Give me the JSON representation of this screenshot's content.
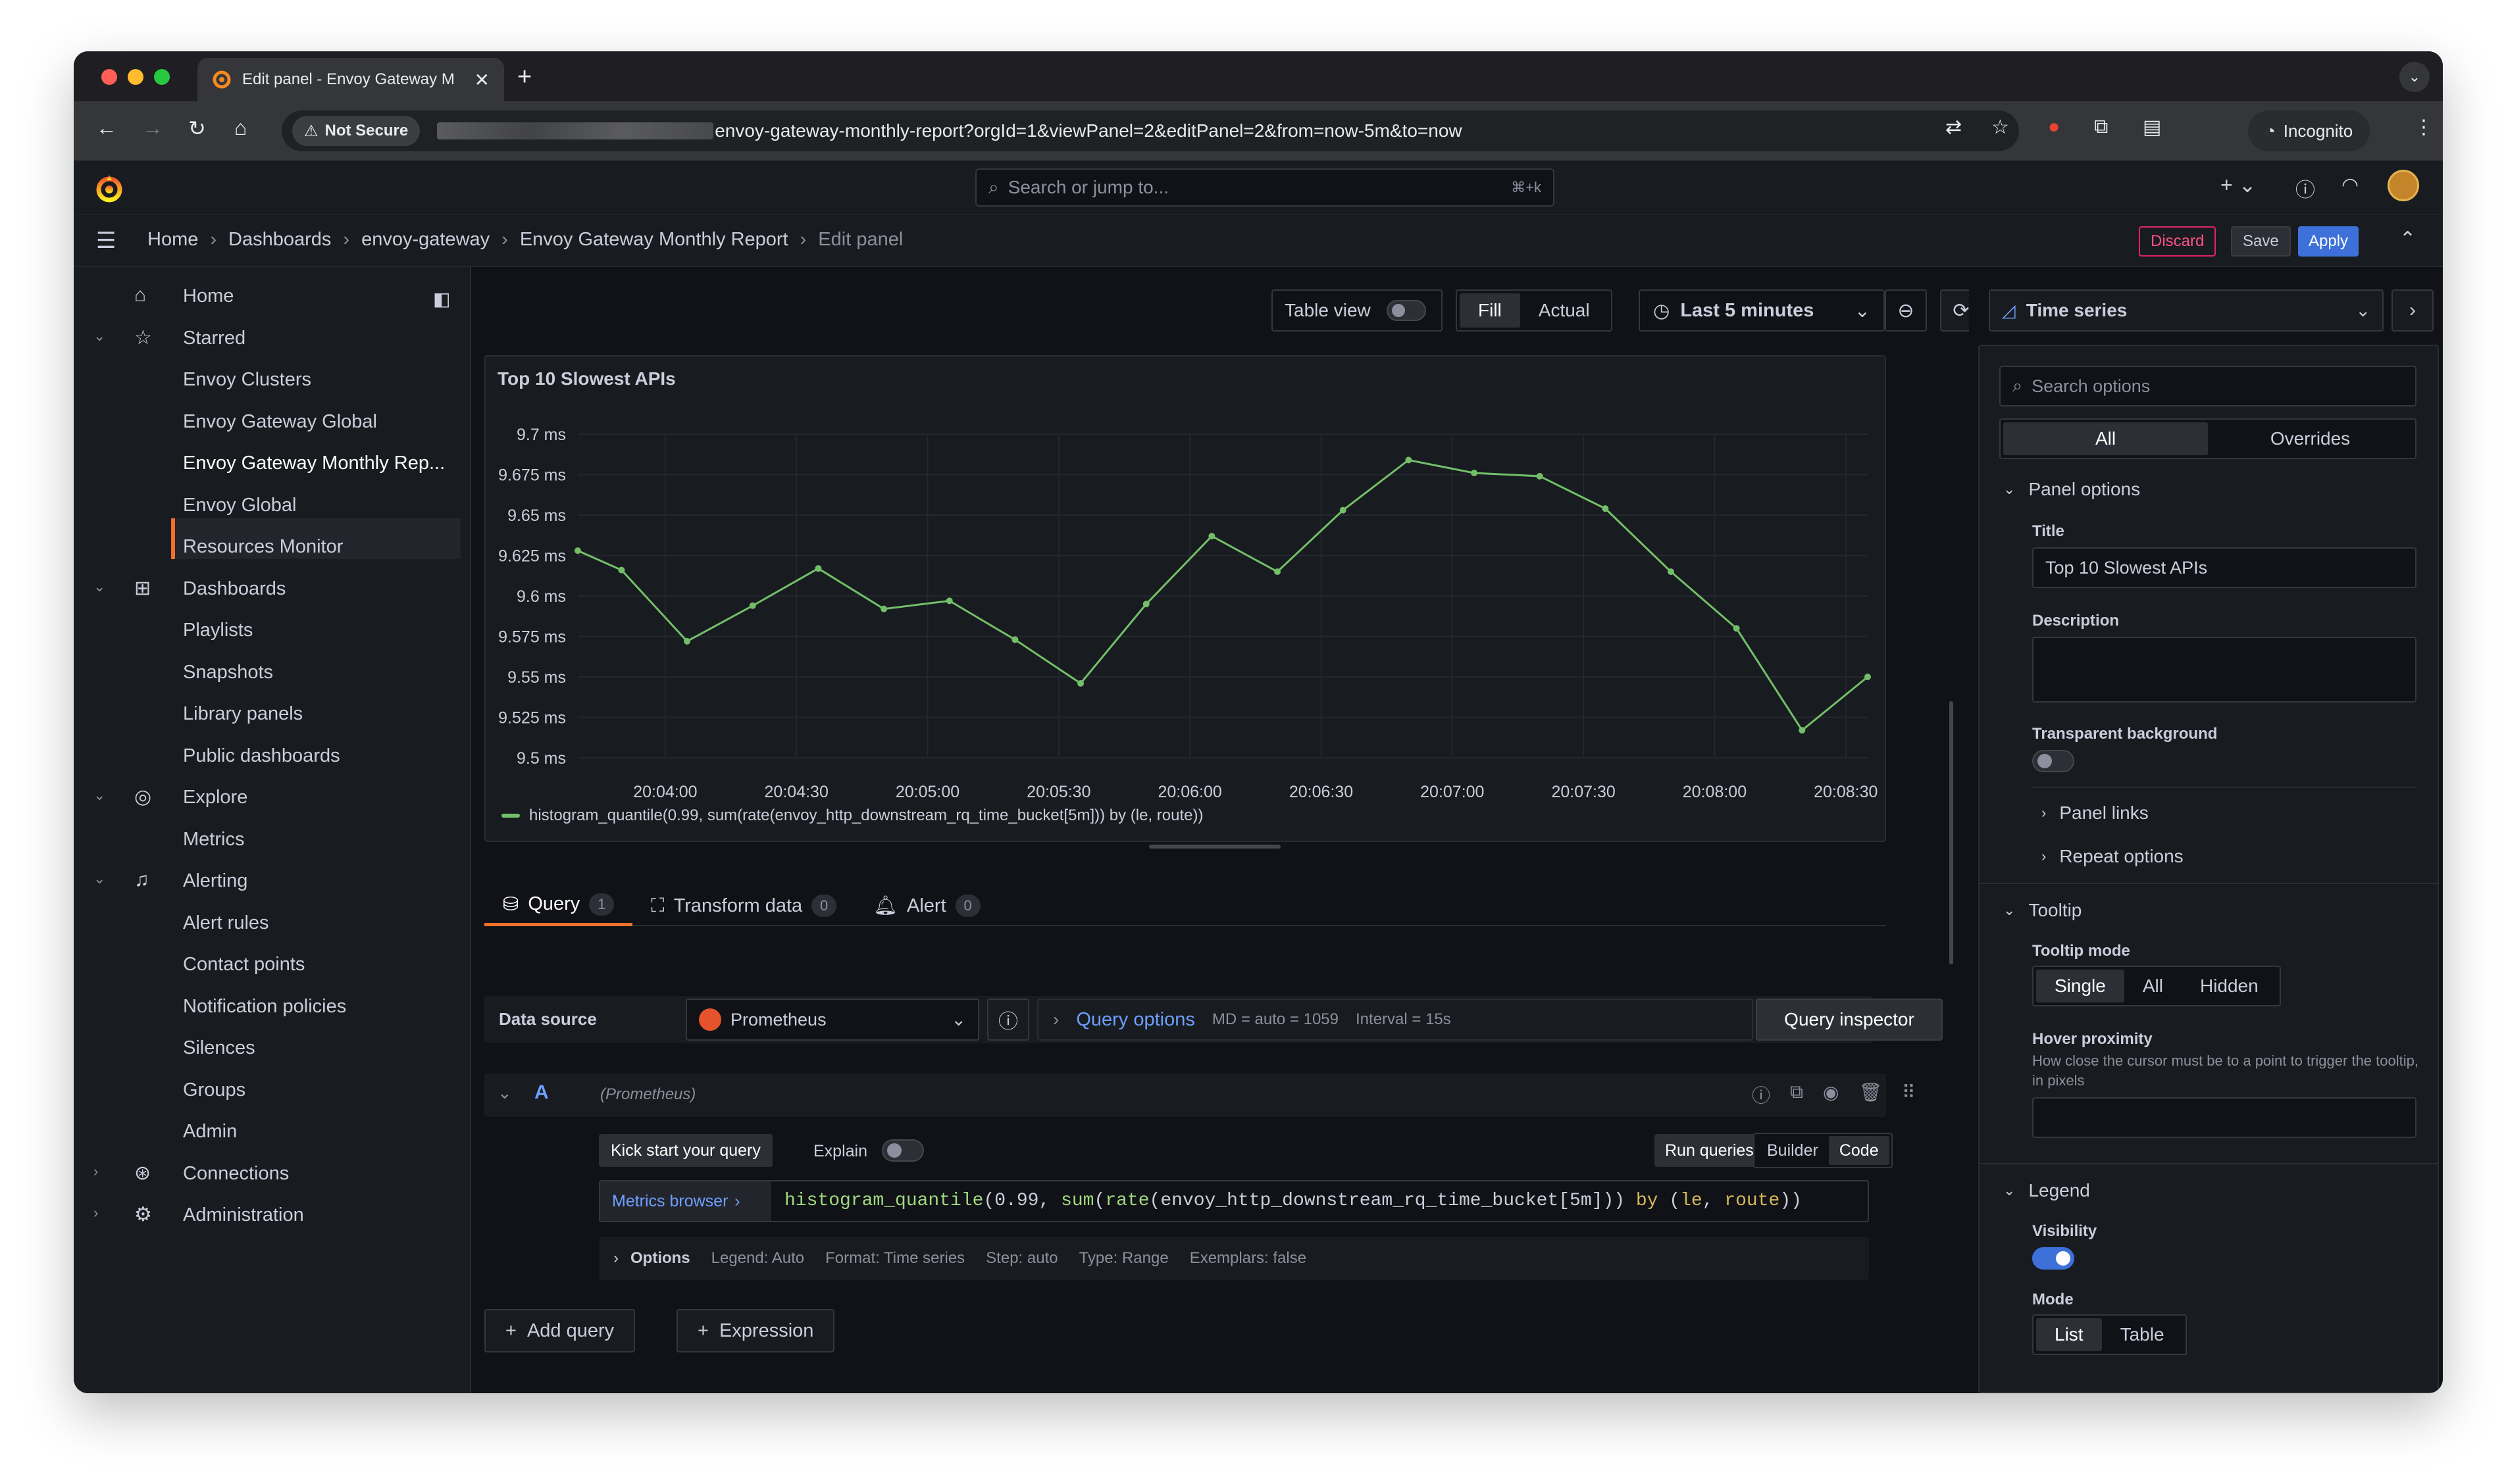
{
  "browser": {
    "tab_title": "Edit panel - Envoy Gateway M",
    "url": "envoy-gateway-monthly-report?orgId=1&viewPanel=2&editPanel=2&from=now-5m&to=now",
    "not_secure": "Not Secure",
    "incognito": "Incognito"
  },
  "topbar": {
    "search_placeholder": "Search or jump to...",
    "search_shortcut": "⌘+k"
  },
  "breadcrumb": [
    "Home",
    "Dashboards",
    "envoy-gateway",
    "Envoy Gateway Monthly Report",
    "Edit panel"
  ],
  "actions": {
    "discard": "Discard",
    "save": "Save",
    "apply": "Apply"
  },
  "sidebar": {
    "items": [
      {
        "label": "Home",
        "type": "top",
        "icon": "home-icon"
      },
      {
        "label": "Starred",
        "type": "section",
        "icon": "star-icon"
      },
      {
        "label": "Envoy Clusters",
        "type": "sub"
      },
      {
        "label": "Envoy Gateway Global",
        "type": "sub"
      },
      {
        "label": "Envoy Gateway Monthly Rep...",
        "type": "sub",
        "active": true
      },
      {
        "label": "Envoy Global",
        "type": "sub"
      },
      {
        "label": "Resources Monitor",
        "type": "sub"
      },
      {
        "label": "Dashboards",
        "type": "section",
        "icon": "apps-icon"
      },
      {
        "label": "Playlists",
        "type": "sub"
      },
      {
        "label": "Snapshots",
        "type": "sub"
      },
      {
        "label": "Library panels",
        "type": "sub"
      },
      {
        "label": "Public dashboards",
        "type": "sub"
      },
      {
        "label": "Explore",
        "type": "section",
        "icon": "compass-icon"
      },
      {
        "label": "Metrics",
        "type": "sub"
      },
      {
        "label": "Alerting",
        "type": "section",
        "icon": "bell-icon"
      },
      {
        "label": "Alert rules",
        "type": "sub"
      },
      {
        "label": "Contact points",
        "type": "sub"
      },
      {
        "label": "Notification policies",
        "type": "sub"
      },
      {
        "label": "Silences",
        "type": "sub"
      },
      {
        "label": "Groups",
        "type": "sub"
      },
      {
        "label": "Admin",
        "type": "sub"
      },
      {
        "label": "Connections",
        "type": "collapsed",
        "icon": "link-icon"
      },
      {
        "label": "Administration",
        "type": "collapsed",
        "icon": "gear-icon"
      }
    ]
  },
  "panel_toolbar": {
    "table_view": "Table view",
    "fill": "Fill",
    "actual": "Actual",
    "time_range": "Last 5 minutes"
  },
  "panel": {
    "title": "Top 10 Slowest APIs"
  },
  "chart_data": {
    "type": "line",
    "title": "Top 10 Slowest APIs",
    "x": [
      "20:03:40",
      "20:03:50",
      "20:04:05",
      "20:04:20",
      "20:04:35",
      "20:04:50",
      "20:05:05",
      "20:05:20",
      "20:05:35",
      "20:05:50",
      "20:06:05",
      "20:06:20",
      "20:06:35",
      "20:06:50",
      "20:07:05",
      "20:07:20",
      "20:07:35",
      "20:07:50",
      "20:08:05",
      "20:08:20",
      "20:08:35"
    ],
    "series": [
      {
        "name": "histogram_quantile(0.99, sum(rate(envoy_http_downstream_rq_time_bucket[5m])) by (le, route))",
        "color": "#73bf69",
        "values": [
          9.628,
          9.616,
          9.572,
          9.594,
          9.617,
          9.592,
          9.597,
          9.573,
          9.546,
          9.595,
          9.637,
          9.615,
          9.653,
          9.684,
          9.676,
          9.674,
          9.654,
          9.615,
          9.58,
          9.517,
          9.55
        ]
      }
    ],
    "y_ticks": [
      "9.5 ms",
      "9.525 ms",
      "9.55 ms",
      "9.575 ms",
      "9.6 ms",
      "9.625 ms",
      "9.65 ms",
      "9.675 ms",
      "9.7 ms"
    ],
    "x_ticks": [
      "20:04:00",
      "20:04:30",
      "20:05:00",
      "20:05:30",
      "20:06:00",
      "20:06:30",
      "20:07:00",
      "20:07:30",
      "20:08:00",
      "20:08:30"
    ],
    "ylim": [
      9.5,
      9.7
    ],
    "grid": true,
    "legend": "bottom-left"
  },
  "query_tabs": [
    {
      "label": "Query",
      "count": "1"
    },
    {
      "label": "Transform data",
      "count": "0"
    },
    {
      "label": "Alert",
      "count": "0"
    }
  ],
  "query": {
    "data_source_label": "Data source",
    "data_source": "Prometheus",
    "query_options": "Query options",
    "md": "MD = auto = 1059",
    "interval": "Interval = 15s",
    "inspector": "Query inspector",
    "ref_id": "A",
    "ref_ds": "(Prometheus)",
    "kick_start": "Kick start your query",
    "explain": "Explain",
    "run": "Run queries",
    "builder": "Builder",
    "code": "Code",
    "metrics_browser": "Metrics browser",
    "expr_fn": "histogram_quantile",
    "expr_open": "(0.99, ",
    "expr_sum": "sum",
    "expr_p": "(",
    "expr_rate": "rate",
    "expr_metric": "(envoy_http_downstream_rq_time_bucket[5m])) ",
    "expr_by": "by",
    "expr_paren": " (",
    "expr_le": "le",
    "expr_comma": ", ",
    "expr_route": "route",
    "expr_close": "))",
    "options_label": "Options",
    "opt_legend": "Legend: Auto",
    "opt_format": "Format: Time series",
    "opt_step": "Step: auto",
    "opt_type": "Type: Range",
    "opt_exemplars": "Exemplars: false",
    "add_query": "Add query",
    "expression": "Expression"
  },
  "options_pane": {
    "viz": "Time series",
    "search_placeholder": "Search options",
    "tab_all": "All",
    "tab_overrides": "Overrides",
    "panel_options": "Panel options",
    "title_label": "Title",
    "title_value": "Top 10 Slowest APIs",
    "description_label": "Description",
    "transparent_label": "Transparent background",
    "panel_links": "Panel links",
    "repeat_options": "Repeat options",
    "tooltip": "Tooltip",
    "tooltip_mode": "Tooltip mode",
    "mode_single": "Single",
    "mode_all": "All",
    "mode_hidden": "Hidden",
    "hover_proximity": "Hover proximity",
    "hover_desc": "How close the cursor must be to a point to trigger the tooltip, in pixels",
    "legend": "Legend",
    "visibility": "Visibility",
    "mode_label": "Mode",
    "list": "List",
    "table": "Table"
  }
}
